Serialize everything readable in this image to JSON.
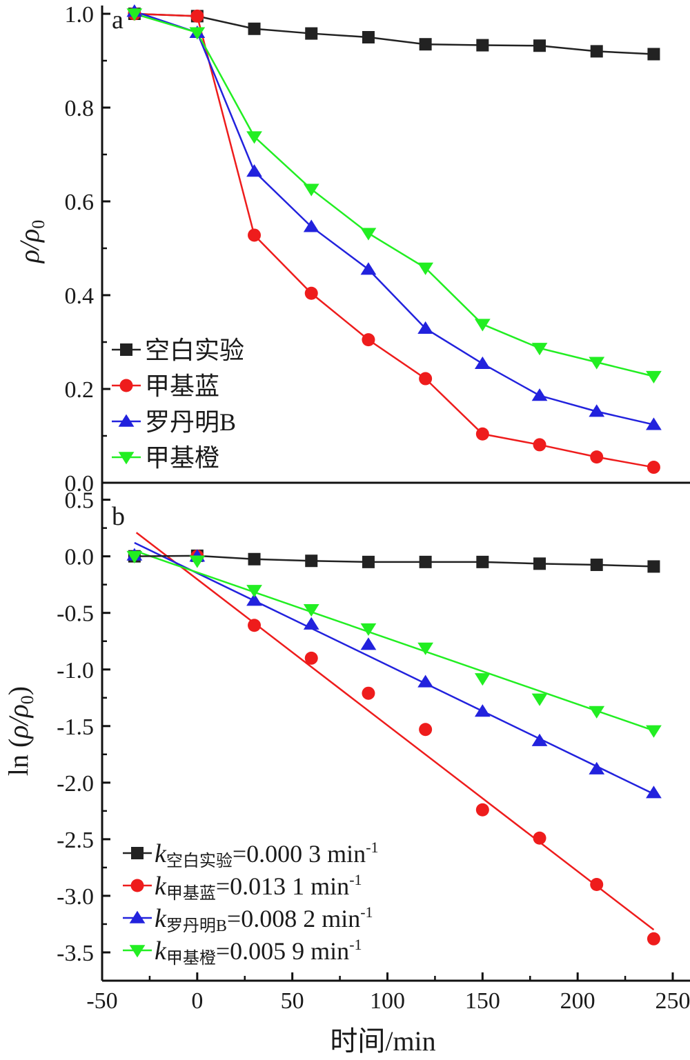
{
  "chart_data": [
    {
      "type": "line",
      "panel_label": "a",
      "ylabel": "ρ/ρ0",
      "ylim": [
        0,
        1.0
      ],
      "yticks": [
        "1.0",
        "0.8",
        "0.6",
        "0.4",
        "0.2",
        "0.0"
      ],
      "legend_position": "left-bottom",
      "series": [
        {
          "name": "空白实验",
          "color": "#222222",
          "marker": "square",
          "x": [
            -33,
            0,
            30,
            60,
            90,
            120,
            150,
            180,
            210,
            240
          ],
          "y": [
            1.0,
            0.995,
            0.968,
            0.958,
            0.95,
            0.935,
            0.933,
            0.932,
            0.92,
            0.914
          ]
        },
        {
          "name": "甲基蓝",
          "color": "#ee1c1c",
          "marker": "circle",
          "x": [
            -33,
            0,
            30,
            60,
            90,
            120,
            150,
            180,
            210,
            240
          ],
          "y": [
            1.0,
            0.995,
            0.528,
            0.404,
            0.305,
            0.222,
            0.104,
            0.081,
            0.055,
            0.033
          ]
        },
        {
          "name": "罗丹明B",
          "color": "#2222dd",
          "marker": "triangle-up",
          "x": [
            -33,
            0,
            30,
            60,
            90,
            120,
            150,
            180,
            210,
            240
          ],
          "y": [
            1.005,
            0.96,
            0.664,
            0.546,
            0.455,
            0.329,
            0.254,
            0.186,
            0.152,
            0.124
          ]
        },
        {
          "name": "甲基橙",
          "color": "#22ee22",
          "marker": "triangle-down",
          "x": [
            -33,
            0,
            30,
            60,
            90,
            120,
            150,
            180,
            210,
            240
          ],
          "y": [
            1.0,
            0.96,
            0.738,
            0.626,
            0.532,
            0.458,
            0.338,
            0.287,
            0.257,
            0.227
          ]
        }
      ]
    },
    {
      "type": "scatter",
      "panel_label": "b",
      "ylabel": "ln (ρ/ρ0)",
      "xlabel": "时间/min",
      "xlim": [
        -50,
        250
      ],
      "ylim": [
        -3.75,
        0.65
      ],
      "xticks": [
        "-50",
        "0",
        "50",
        "100",
        "150",
        "200",
        "250"
      ],
      "yticks": [
        "0.5",
        "0.0",
        "-0.5",
        "-1.0",
        "-1.5",
        "-2.0",
        "-2.5",
        "-3.0",
        "-3.5"
      ],
      "legend_position": "left-bottom",
      "series": [
        {
          "name": "空白实验",
          "k_value": "=0.000 3 min",
          "unit_exp": "-1",
          "color": "#222222",
          "marker": "square",
          "x": [
            -33,
            0,
            30,
            60,
            90,
            120,
            150,
            180,
            210,
            240
          ],
          "y": [
            0.0,
            0.005,
            -0.025,
            -0.04,
            -0.05,
            -0.05,
            -0.05,
            -0.065,
            -0.075,
            -0.09
          ],
          "fit": {
            "x": [
              -33,
              240
            ],
            "y": [
              0.0,
              -0.09
            ]
          }
        },
        {
          "name": "甲基蓝",
          "k_value": "=0.013 1 min",
          "unit_exp": "-1",
          "color": "#ee1c1c",
          "marker": "circle",
          "x": [
            0,
            30,
            60,
            90,
            120,
            150,
            180,
            210,
            240
          ],
          "y": [
            0.0,
            -0.61,
            -0.9,
            -1.21,
            -1.53,
            -2.24,
            -2.49,
            -2.9,
            -3.38
          ],
          "fit": {
            "x": [
              -32,
              240
            ],
            "y": [
              0.21,
              -3.3
            ]
          }
        },
        {
          "name": "罗丹明B",
          "k_value": "=0.008 2 min",
          "unit_exp": "-1",
          "color": "#2222dd",
          "marker": "triangle-up",
          "x": [
            -33,
            0,
            30,
            60,
            90,
            120,
            150,
            180,
            210,
            240
          ],
          "y": [
            0.01,
            0.0,
            -0.39,
            -0.6,
            -0.78,
            -1.11,
            -1.37,
            -1.63,
            -1.88,
            -2.09
          ],
          "fit": {
            "x": [
              -33,
              240
            ],
            "y": [
              0.12,
              -2.1
            ]
          }
        },
        {
          "name": "甲基橙",
          "k_value": "=0.005 9 min",
          "unit_exp": "-1",
          "color": "#22ee22",
          "marker": "triangle-down",
          "x": [
            -33,
            0,
            30,
            60,
            90,
            120,
            150,
            180,
            210,
            240
          ],
          "y": [
            0.0,
            -0.04,
            -0.3,
            -0.47,
            -0.64,
            -0.81,
            -1.08,
            -1.26,
            -1.37,
            -1.54
          ],
          "fit": {
            "x": [
              -33,
              240
            ],
            "y": [
              0.05,
              -1.54
            ]
          }
        }
      ]
    }
  ]
}
